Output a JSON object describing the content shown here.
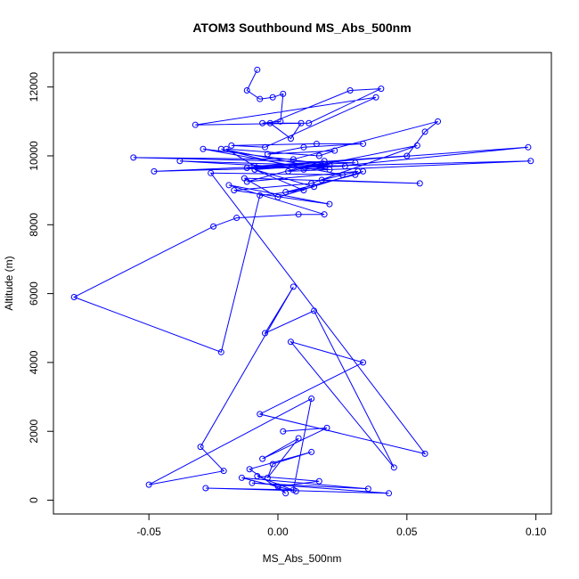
{
  "chart_data": {
    "type": "line",
    "title": "ATOM3 Southbound MS_Abs_500nm",
    "xlabel": "MS_Abs_500nm",
    "ylabel": "Altitude (m)",
    "xlim": [
      -0.087,
      0.106
    ],
    "ylim": [
      -400,
      13000
    ],
    "x_ticks": [
      -0.05,
      0.0,
      0.05,
      0.1
    ],
    "x_tick_labels": [
      "-0.05",
      "0.00",
      "0.05",
      "0.10"
    ],
    "y_ticks": [
      0,
      2000,
      4000,
      6000,
      8000,
      10000,
      12000
    ],
    "y_tick_labels": [
      "0",
      "2000",
      "4000",
      "6000",
      "8000",
      "10000",
      "12000"
    ],
    "grid": false,
    "legend": "none",
    "color": "#0000ff",
    "marker": "open-circle",
    "series": [
      {
        "x": [
          -0.008,
          -0.012,
          -0.007,
          -0.002,
          0.002,
          0.001,
          -0.006,
          0.009,
          0.005,
          -0.003,
          0.028,
          0.04,
          0.012,
          -0.032,
          0.038,
          -0.005,
          -0.018,
          0.015,
          0.033,
          0.01,
          -0.004,
          0.022,
          0.016,
          -0.02,
          -0.009,
          0.05,
          0.057,
          0.062,
          0.006,
          -0.056,
          0.03,
          -0.048,
          0.026,
          -0.038,
          0.02,
          -0.022,
          0.01,
          0.097,
          -0.012,
          0.098,
          0.004,
          0.054,
          0.013,
          -0.017,
          0.02,
          -0.019,
          0.018,
          0.008,
          -0.016,
          -0.025,
          -0.079,
          -0.022,
          -0.007,
          0.01,
          -0.009,
          0.014,
          0.003,
          0.03,
          0.033,
          0.0,
          -0.013,
          0.055,
          0.017,
          0.031,
          -0.012,
          0.018,
          -0.009,
          0.02,
          -0.029,
          0.025,
          -0.026,
          0.057,
          -0.007,
          0.033,
          0.005,
          0.045,
          0.014,
          -0.005,
          0.006,
          -0.03,
          -0.021,
          -0.05,
          0.013,
          0.006,
          -0.028,
          0.043,
          -0.01,
          0.035,
          -0.014,
          0.007,
          -0.008,
          0.016,
          0.0,
          0.003,
          -0.011,
          0.013,
          -0.002,
          -0.004,
          0.008,
          -0.006,
          0.019,
          0.002
        ],
        "y": [
          12500,
          11900,
          11650,
          11700,
          11800,
          11000,
          10950,
          10950,
          10500,
          10950,
          11900,
          11950,
          10950,
          10900,
          11700,
          10250,
          10300,
          10350,
          10350,
          10250,
          10050,
          10150,
          10000,
          10200,
          9700,
          10000,
          10700,
          11000,
          9900,
          9950,
          9800,
          9550,
          9700,
          9850,
          9600,
          10200,
          9600,
          10250,
          9650,
          9850,
          9550,
          10300,
          9200,
          9000,
          8600,
          9150,
          8300,
          8300,
          8200,
          7950,
          5900,
          4300,
          8850,
          9000,
          9600,
          9100,
          8950,
          9450,
          9550,
          8800,
          9350,
          9200,
          9300,
          9550,
          9250,
          9850,
          9600,
          9750,
          10200,
          9450,
          9500,
          1350,
          2500,
          4000,
          4600,
          950,
          5500,
          4850,
          6200,
          1550,
          850,
          450,
          2950,
          300,
          350,
          200,
          500,
          330,
          650,
          260,
          700,
          550,
          400,
          200,
          900,
          1400,
          1050,
          650,
          1800,
          1200,
          2100,
          2000
        ]
      }
    ]
  }
}
